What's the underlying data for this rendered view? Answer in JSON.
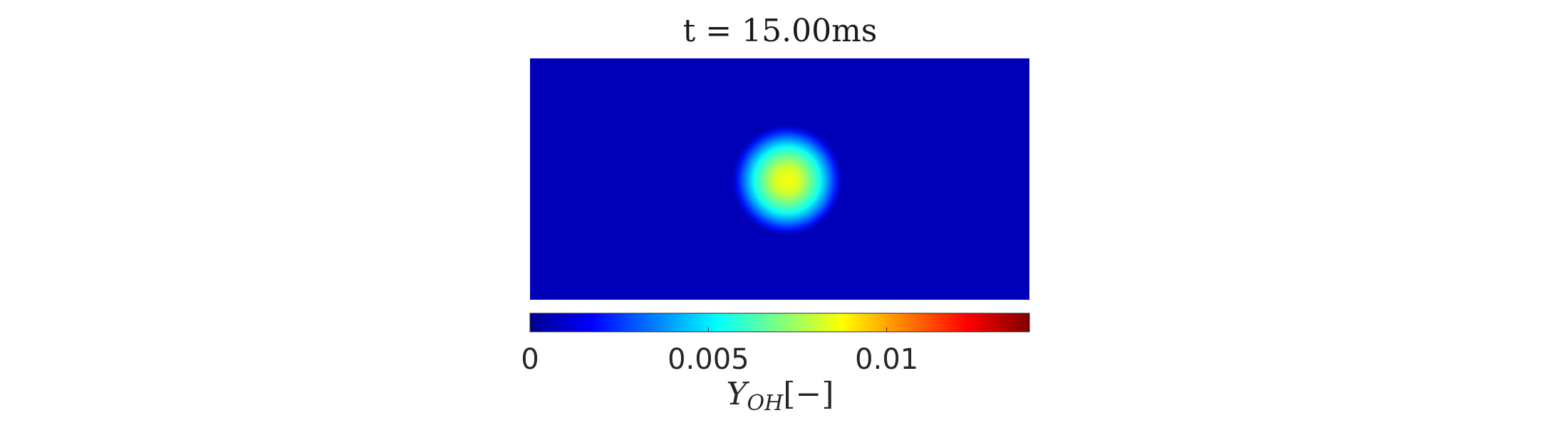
{
  "chart_data": {
    "type": "heatmap",
    "title": "t = 15.00ms",
    "colormap": "jet",
    "peak": {
      "x_fraction": 0.51,
      "y_fraction": 0.5,
      "value": 0.0085
    },
    "background_value": 0.0005,
    "colorbar": {
      "orientation": "horizontal",
      "range": [
        0,
        0.014
      ],
      "ticks": [
        {
          "value": 0,
          "label": "0"
        },
        {
          "value": 0.005,
          "label": "0.005"
        },
        {
          "value": 0.01,
          "label": "0.01"
        }
      ],
      "label_main": "Y",
      "label_sub": "OH",
      "label_unit": "[−]"
    }
  }
}
